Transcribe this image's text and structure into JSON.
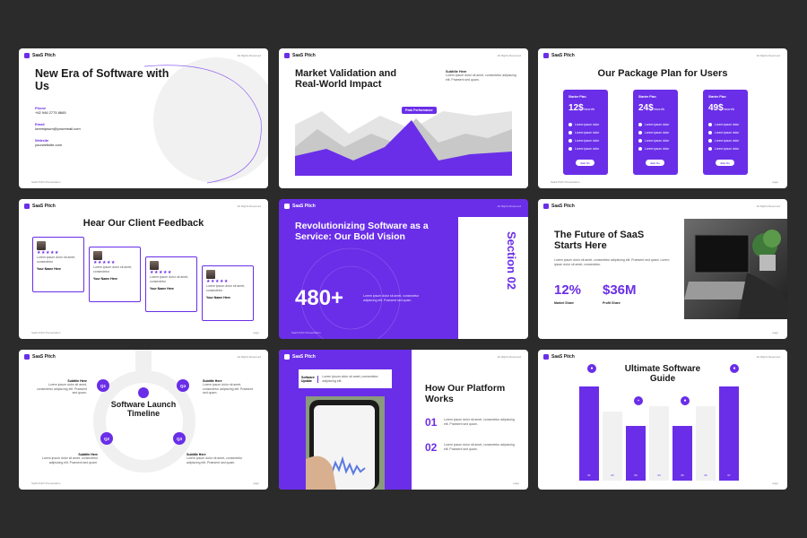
{
  "common": {
    "brand": "SaaS Pitch",
    "rights": "All Rights Reserved",
    "footer": "SaaS Pitch Presentation",
    "page": "page"
  },
  "s1": {
    "title": "New Era of Software with Us",
    "phone_label": "Phone",
    "phone": "+62 946 2775 8665",
    "email_label": "Email",
    "email": "loremipsum@youremail.com",
    "website_label": "Website",
    "website": "yourwebsite.com"
  },
  "s2": {
    "title": "Market Validation and Real-World Impact",
    "subtitle": "Subtitle Here",
    "body": "Lorem ipsum dolor sit amet, consectetur adipiscing elit. Praesent sed quam.",
    "peak": "Peak Performance"
  },
  "s3": {
    "title": "Our Package Plan for Users",
    "plans": [
      {
        "name": "Starter Plan",
        "price": "12$",
        "period": "/month",
        "features": [
          "Lorem ipsum dolor",
          "Lorem ipsum dolor",
          "Lorem ipsum dolor",
          "Lorem ipsum dolor"
        ],
        "cta": "Join Us"
      },
      {
        "name": "Starter Plan",
        "price": "24$",
        "period": "/month",
        "features": [
          "Lorem ipsum dolor",
          "Lorem ipsum dolor",
          "Lorem ipsum dolor",
          "Lorem ipsum dolor"
        ],
        "cta": "Join Us"
      },
      {
        "name": "Starter Plan",
        "price": "49$",
        "period": "/month",
        "features": [
          "Lorem ipsum dolor",
          "Lorem ipsum dolor",
          "Lorem ipsum dolor",
          "Lorem ipsum dolor"
        ],
        "cta": "Join Us"
      }
    ]
  },
  "s4": {
    "title": "Hear Our Client Feedback",
    "stars": "★★★★★",
    "body": "Lorem ipsum dolor sit amet, consectetur",
    "name": "Your Name Here"
  },
  "s5": {
    "title": "Revolutionizing Software as a Service: Our Bold Vision",
    "number": "480+",
    "body": "Lorem ipsum dolor sit amet, consectetur adipiscing elit. Praesent sed quam.",
    "section": "Section 02"
  },
  "s6": {
    "title": "The Future of SaaS Starts Here",
    "body": "Lorem ipsum dolor sit amet, consectetur adipiscing elit. Praesent sed quam. Lorem ipsum dolor sit amet, consectetur.",
    "stat1": "12%",
    "stat1_label": "Market Share",
    "stat2": "$36M",
    "stat2_label": "Profit Share"
  },
  "s7": {
    "title": "Software Launch Timeline",
    "sub": "Subtitle Here",
    "body": "Lorem ipsum dolor sit amet, consectetur adipiscing elit. Praesent sed quam.",
    "q1": "Q1",
    "q2": "Q2",
    "q3": "Q3",
    "q4": "Q4"
  },
  "s8": {
    "title": "How Our Platform Works",
    "tag": "Software Update",
    "tag_body": "Lorem ipsum dolor sit amet, consectetur adipiscing elit.",
    "n1": "01",
    "n2": "02",
    "body": "Lorem ipsum dolor sit amet, consectetur adipiscing elit. Praesent sed quam."
  },
  "s9": {
    "title": "Ultimate Software Guide",
    "bars": [
      {
        "label": "01",
        "level": 0.95
      },
      {
        "label": "02",
        "level": 0.7
      },
      {
        "label": "03",
        "level": 0.55
      },
      {
        "label": "04",
        "level": 0.75
      },
      {
        "label": "05",
        "level": 0.55
      },
      {
        "label": "06",
        "level": 0.75
      },
      {
        "label": "07",
        "level": 0.95
      }
    ]
  }
}
